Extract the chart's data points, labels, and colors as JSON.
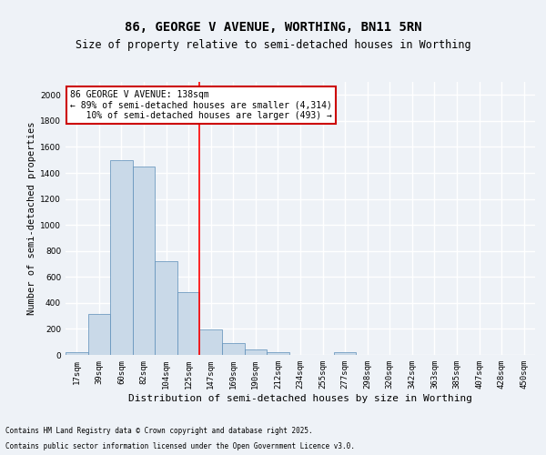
{
  "title": "86, GEORGE V AVENUE, WORTHING, BN11 5RN",
  "subtitle": "Size of property relative to semi-detached houses in Worthing",
  "xlabel": "Distribution of semi-detached houses by size in Worthing",
  "ylabel": "Number of semi-detached properties",
  "categories": [
    "17sqm",
    "39sqm",
    "60sqm",
    "82sqm",
    "104sqm",
    "125sqm",
    "147sqm",
    "169sqm",
    "190sqm",
    "212sqm",
    "234sqm",
    "255sqm",
    "277sqm",
    "298sqm",
    "320sqm",
    "342sqm",
    "363sqm",
    "385sqm",
    "407sqm",
    "428sqm",
    "450sqm"
  ],
  "values": [
    20,
    315,
    1500,
    1450,
    720,
    485,
    195,
    90,
    45,
    20,
    0,
    0,
    20,
    0,
    0,
    0,
    0,
    0,
    0,
    0,
    0
  ],
  "bar_color": "#c9d9e8",
  "bar_edge_color": "#5b8db8",
  "red_line_x": 5.5,
  "annotation_line1": "86 GEORGE V AVENUE: 138sqm",
  "annotation_line2": "← 89% of semi-detached houses are smaller (4,314)",
  "annotation_line3": "   10% of semi-detached houses are larger (493) →",
  "annotation_box_color": "#ffffff",
  "annotation_box_edge": "#cc0000",
  "footnote1": "Contains HM Land Registry data © Crown copyright and database right 2025.",
  "footnote2": "Contains public sector information licensed under the Open Government Licence v3.0.",
  "ylim": [
    0,
    2100
  ],
  "yticks": [
    0,
    200,
    400,
    600,
    800,
    1000,
    1200,
    1400,
    1600,
    1800,
    2000
  ],
  "background_color": "#eef2f7",
  "grid_color": "#ffffff",
  "title_fontsize": 10,
  "subtitle_fontsize": 8.5,
  "xlabel_fontsize": 8,
  "ylabel_fontsize": 7.5,
  "tick_fontsize": 6.5,
  "annot_fontsize": 7,
  "footnote_fontsize": 5.5
}
